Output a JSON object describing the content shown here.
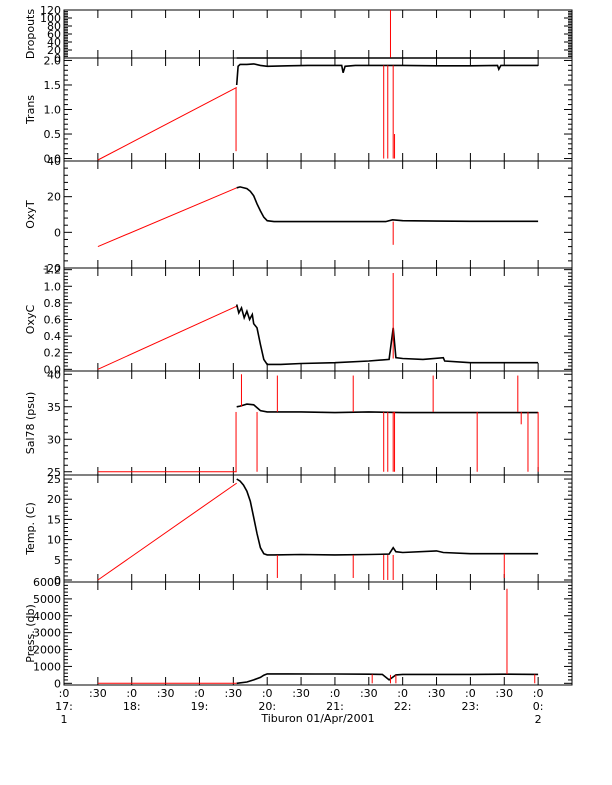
{
  "colors": {
    "raw": "#ff0000",
    "clean": "#000000",
    "axis": "#000000",
    "background": "#ffffff"
  },
  "figure": {
    "caption": "Tiburon 01/Apr/2001"
  },
  "x_axis": {
    "range": [
      17.0,
      24.5
    ],
    "ticks": [
      {
        "v": 17.0,
        "l1": ":0",
        "l2": "17:",
        "l3": "1"
      },
      {
        "v": 17.5,
        "l1": ":30",
        "l2": "",
        "l3": ""
      },
      {
        "v": 18.0,
        "l1": ":0",
        "l2": "18:",
        "l3": ""
      },
      {
        "v": 18.5,
        "l1": ":30",
        "l2": "",
        "l3": ""
      },
      {
        "v": 19.0,
        "l1": ":0",
        "l2": "19:",
        "l3": ""
      },
      {
        "v": 19.5,
        "l1": ":30",
        "l2": "",
        "l3": ""
      },
      {
        "v": 20.0,
        "l1": ":0",
        "l2": "20:",
        "l3": ""
      },
      {
        "v": 20.5,
        "l1": ":30",
        "l2": "",
        "l3": ""
      },
      {
        "v": 21.0,
        "l1": ":0",
        "l2": "21:",
        "l3": ""
      },
      {
        "v": 21.5,
        "l1": ":30",
        "l2": "",
        "l3": ""
      },
      {
        "v": 22.0,
        "l1": ":0",
        "l2": "22:",
        "l3": ""
      },
      {
        "v": 22.5,
        "l1": ":30",
        "l2": "",
        "l3": ""
      },
      {
        "v": 23.0,
        "l1": ":0",
        "l2": "23:",
        "l3": ""
      },
      {
        "v": 23.5,
        "l1": ":30",
        "l2": "",
        "l3": ""
      },
      {
        "v": 24.0,
        "l1": ":0",
        "l2": "0:",
        "l3": "2"
      }
    ]
  },
  "chart_data": [
    {
      "type": "line",
      "ylabel": "Dropouts",
      "ylim": [
        0,
        120
      ],
      "yticks": [
        {
          "v": 0,
          "l": "0"
        },
        {
          "v": 20,
          "l": "20"
        },
        {
          "v": 40,
          "l": "40"
        },
        {
          "v": 60,
          "l": "60"
        },
        {
          "v": 80,
          "l": "80"
        },
        {
          "v": 100,
          "l": "100"
        },
        {
          "v": 120,
          "l": "120"
        }
      ],
      "series": [
        {
          "role": "raw",
          "x": [
            17.5,
            19.55
          ],
          "y": [
            0,
            0
          ]
        },
        {
          "role": "clean",
          "x": [
            19.55,
            24.0
          ],
          "y": [
            0,
            0
          ]
        }
      ],
      "spikes": [
        {
          "x": 21.82,
          "y0": 0,
          "y1": 120,
          "role": "raw"
        }
      ]
    },
    {
      "type": "line",
      "ylabel": "Trans",
      "ylim": [
        -0.05,
        2.05
      ],
      "yticks": [
        {
          "v": 0,
          "l": "0.0"
        },
        {
          "v": 0.5,
          "l": "0.5"
        },
        {
          "v": 1.0,
          "l": "1.0"
        },
        {
          "v": 1.5,
          "l": "1.5"
        },
        {
          "v": 2.0,
          "l": "2.0"
        }
      ],
      "series": [
        {
          "role": "raw",
          "x": [
            17.5,
            19.55
          ],
          "y": [
            -0.03,
            1.45
          ]
        },
        {
          "role": "clean",
          "x": [
            19.55,
            19.57,
            19.6,
            19.7,
            19.8,
            19.9,
            20.0,
            20.3,
            20.6,
            20.9,
            21.1,
            21.12,
            21.15,
            21.3,
            21.5,
            21.8,
            22.0,
            22.5,
            23.0,
            23.4,
            23.42,
            23.45,
            23.8,
            24.0
          ],
          "y": [
            1.5,
            1.88,
            1.92,
            1.92,
            1.93,
            1.9,
            1.88,
            1.89,
            1.9,
            1.9,
            1.9,
            1.75,
            1.88,
            1.9,
            1.9,
            1.9,
            1.9,
            1.89,
            1.89,
            1.9,
            1.82,
            1.9,
            1.9,
            1.9
          ]
        }
      ],
      "spikes": [
        {
          "x": 19.54,
          "y0": 1.45,
          "y1": 0.15,
          "role": "raw"
        },
        {
          "x": 21.72,
          "y0": 1.9,
          "y1": 0.0,
          "role": "raw"
        },
        {
          "x": 21.78,
          "y0": 1.9,
          "y1": 0.0,
          "role": "raw"
        },
        {
          "x": 21.86,
          "y0": 1.9,
          "y1": 0.0,
          "role": "raw"
        },
        {
          "x": 21.88,
          "y0": 0.5,
          "y1": 0.0,
          "role": "raw"
        }
      ]
    },
    {
      "type": "line",
      "ylabel": "OxyT",
      "ylim": [
        -20,
        40
      ],
      "yticks": [
        {
          "v": -20,
          "l": "-20"
        },
        {
          "v": 0,
          "l": "0"
        },
        {
          "v": 20,
          "l": "20"
        },
        {
          "v": 40,
          "l": "40"
        }
      ],
      "series": [
        {
          "role": "raw",
          "x": [
            17.5,
            19.55
          ],
          "y": [
            -8,
            25
          ]
        },
        {
          "role": "clean",
          "x": [
            19.55,
            19.6,
            19.7,
            19.75,
            19.8,
            19.85,
            19.9,
            19.95,
            20.0,
            20.1,
            20.5,
            21.0,
            21.5,
            21.75,
            21.85,
            22.0,
            22.5,
            23.0,
            24.0
          ],
          "y": [
            25,
            25.5,
            24.5,
            23,
            20.5,
            16,
            12,
            8.5,
            6.5,
            6.0,
            6.0,
            6.0,
            6.0,
            6.0,
            7.0,
            6.5,
            6.3,
            6.2,
            6.2
          ]
        }
      ],
      "spikes": [
        {
          "x": 21.86,
          "y0": 6,
          "y1": -7,
          "role": "raw"
        }
      ]
    },
    {
      "type": "line",
      "ylabel": "OxyC",
      "ylim": [
        -0.02,
        1.22
      ],
      "yticks": [
        {
          "v": 0,
          "l": "0.0"
        },
        {
          "v": 0.2,
          "l": "0.2"
        },
        {
          "v": 0.4,
          "l": "0.4"
        },
        {
          "v": 0.6,
          "l": "0.6"
        },
        {
          "v": 0.8,
          "l": "0.8"
        },
        {
          "v": 1.0,
          "l": "1.0"
        },
        {
          "v": 1.2,
          "l": "1.2"
        }
      ],
      "series": [
        {
          "role": "raw",
          "x": [
            17.5,
            19.55
          ],
          "y": [
            0.0,
            0.76
          ]
        },
        {
          "role": "clean",
          "x": [
            19.55,
            19.58,
            19.62,
            19.66,
            19.7,
            19.74,
            19.78,
            19.8,
            19.85,
            19.9,
            19.95,
            20.0,
            20.2,
            20.5,
            21.0,
            21.5,
            21.8,
            21.86,
            21.9,
            22.0,
            22.3,
            22.6,
            22.62,
            23.0,
            23.5,
            24.0
          ],
          "y": [
            0.78,
            0.68,
            0.74,
            0.62,
            0.7,
            0.6,
            0.66,
            0.55,
            0.5,
            0.3,
            0.12,
            0.06,
            0.06,
            0.07,
            0.08,
            0.1,
            0.12,
            0.5,
            0.14,
            0.13,
            0.12,
            0.14,
            0.1,
            0.08,
            0.08,
            0.08
          ]
        }
      ],
      "spikes": [
        {
          "x": 21.86,
          "y0": 0.13,
          "y1": 1.16,
          "role": "raw"
        }
      ]
    },
    {
      "type": "line",
      "ylabel": "Sal78 (psu)",
      "ylim": [
        24.5,
        40.5
      ],
      "yticks": [
        {
          "v": 25,
          "l": "25"
        },
        {
          "v": 30,
          "l": "30"
        },
        {
          "v": 35,
          "l": "35"
        },
        {
          "v": 40,
          "l": "40"
        }
      ],
      "series": [
        {
          "role": "raw",
          "x": [
            17.5,
            19.55
          ],
          "y": [
            25,
            25
          ]
        },
        {
          "role": "clean",
          "x": [
            19.55,
            19.6,
            19.7,
            19.8,
            19.9,
            20.0,
            20.5,
            21.0,
            21.5,
            22.0,
            22.5,
            23.0,
            23.5,
            24.0
          ],
          "y": [
            35.0,
            35.1,
            35.4,
            35.3,
            34.4,
            34.2,
            34.2,
            34.1,
            34.2,
            34.1,
            34.1,
            34.1,
            34.1,
            34.1
          ]
        }
      ],
      "spikes": [
        {
          "x": 19.54,
          "y0": 34.2,
          "y1": 25,
          "role": "raw"
        },
        {
          "x": 19.62,
          "y0": 35,
          "y1": 40,
          "role": "raw"
        },
        {
          "x": 19.85,
          "y0": 34.2,
          "y1": 25,
          "role": "raw"
        },
        {
          "x": 20.15,
          "y0": 34.2,
          "y1": 39.8,
          "role": "raw"
        },
        {
          "x": 21.27,
          "y0": 34.2,
          "y1": 39.8,
          "role": "raw"
        },
        {
          "x": 21.72,
          "y0": 34.2,
          "y1": 25,
          "role": "raw"
        },
        {
          "x": 21.78,
          "y0": 34.2,
          "y1": 25,
          "role": "raw"
        },
        {
          "x": 21.86,
          "y0": 34.2,
          "y1": 25,
          "role": "raw"
        },
        {
          "x": 21.88,
          "y0": 34.2,
          "y1": 25,
          "role": "raw"
        },
        {
          "x": 22.45,
          "y0": 34.2,
          "y1": 39.8,
          "role": "raw"
        },
        {
          "x": 23.1,
          "y0": 34.2,
          "y1": 25,
          "role": "raw"
        },
        {
          "x": 23.7,
          "y0": 34.2,
          "y1": 39.8,
          "role": "raw"
        },
        {
          "x": 23.75,
          "y0": 34.2,
          "y1": 32.3,
          "role": "raw"
        },
        {
          "x": 23.85,
          "y0": 34.2,
          "y1": 25,
          "role": "raw"
        },
        {
          "x": 24.0,
          "y0": 34.2,
          "y1": 25,
          "role": "raw"
        }
      ]
    },
    {
      "type": "line",
      "ylabel": "Temp. (C)",
      "ylim": [
        -0.5,
        26
      ],
      "yticks": [
        {
          "v": 0,
          "l": "0"
        },
        {
          "v": 5,
          "l": "5"
        },
        {
          "v": 10,
          "l": "10"
        },
        {
          "v": 15,
          "l": "15"
        },
        {
          "v": 20,
          "l": "20"
        },
        {
          "v": 25,
          "l": "25"
        }
      ],
      "series": [
        {
          "role": "raw",
          "x": [
            17.5,
            19.55
          ],
          "y": [
            0,
            24
          ]
        },
        {
          "role": "clean",
          "x": [
            19.55,
            19.6,
            19.65,
            19.7,
            19.75,
            19.8,
            19.85,
            19.9,
            19.95,
            20.0,
            20.1,
            20.5,
            21.0,
            21.5,
            21.8,
            21.86,
            21.9,
            22.0,
            22.5,
            22.6,
            23.0,
            24.0
          ],
          "y": [
            25,
            24.5,
            23.5,
            22,
            19.5,
            15.5,
            11.5,
            8,
            6.5,
            6.2,
            6.2,
            6.3,
            6.2,
            6.3,
            6.4,
            8.0,
            7.0,
            6.8,
            7.2,
            6.8,
            6.5,
            6.5
          ]
        }
      ],
      "spikes": [
        {
          "x": 20.15,
          "y0": 6.2,
          "y1": 0.5,
          "role": "raw"
        },
        {
          "x": 21.27,
          "y0": 6.2,
          "y1": 0.5,
          "role": "raw"
        },
        {
          "x": 21.72,
          "y0": 6.2,
          "y1": 0,
          "role": "raw"
        },
        {
          "x": 21.78,
          "y0": 6.2,
          "y1": 0,
          "role": "raw"
        },
        {
          "x": 21.86,
          "y0": 6.2,
          "y1": 0,
          "role": "raw"
        },
        {
          "x": 23.5,
          "y0": 6.5,
          "y1": 0.5,
          "role": "raw"
        }
      ]
    },
    {
      "type": "line",
      "ylabel": "Press. (db)",
      "ylim": [
        -100,
        6000
      ],
      "yticks": [
        {
          "v": 0,
          "l": "0"
        },
        {
          "v": 1000,
          "l": "1000"
        },
        {
          "v": 2000,
          "l": "2000"
        },
        {
          "v": 3000,
          "l": "3000"
        },
        {
          "v": 4000,
          "l": "4000"
        },
        {
          "v": 5000,
          "l": "5000"
        },
        {
          "v": 6000,
          "l": "6000"
        }
      ],
      "series": [
        {
          "role": "raw",
          "x": [
            17.5,
            19.55
          ],
          "y": [
            0,
            0
          ]
        },
        {
          "role": "clean",
          "x": [
            19.55,
            19.7,
            19.8,
            19.9,
            19.95,
            20.0,
            20.3,
            20.7,
            21.0,
            21.5,
            21.7,
            21.8,
            21.9,
            22.0,
            22.5,
            23.0,
            23.5,
            24.0
          ],
          "y": [
            0,
            80,
            200,
            350,
            480,
            560,
            560,
            550,
            550,
            540,
            530,
            200,
            500,
            530,
            530,
            530,
            540,
            530
          ]
        }
      ],
      "spikes": [
        {
          "x": 21.55,
          "y0": 530,
          "y1": 0,
          "role": "raw"
        },
        {
          "x": 21.82,
          "y0": 500,
          "y1": 0,
          "role": "raw"
        },
        {
          "x": 21.9,
          "y0": 500,
          "y1": 0,
          "role": "raw"
        },
        {
          "x": 23.54,
          "y0": 540,
          "y1": 5600,
          "role": "raw"
        },
        {
          "x": 23.95,
          "y0": 530,
          "y1": 0,
          "role": "raw"
        }
      ]
    }
  ]
}
